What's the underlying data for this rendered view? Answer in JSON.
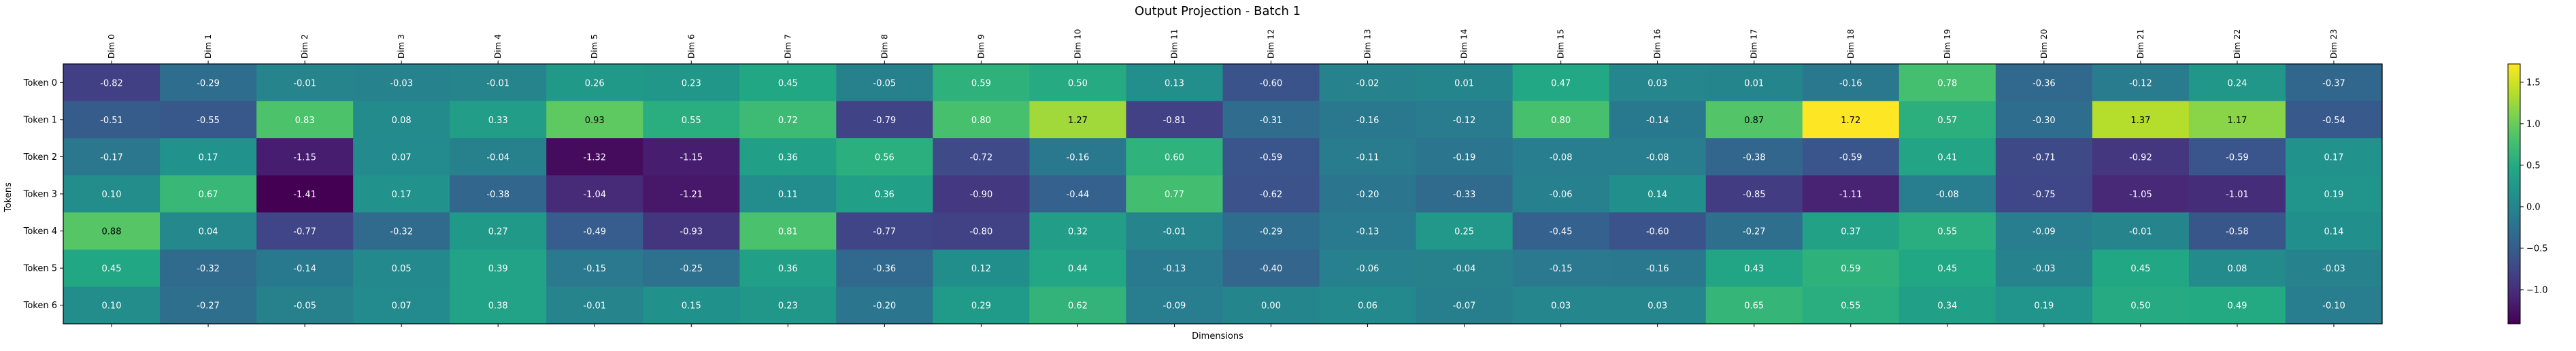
{
  "chart_data": {
    "type": "heatmap",
    "title": "Output Projection - Batch 1",
    "xlabel": "Dimensions",
    "ylabel": "Tokens",
    "x_categories": [
      "Dim 0",
      "Dim 1",
      "Dim 2",
      "Dim 3",
      "Dim 4",
      "Dim 5",
      "Dim 6",
      "Dim 7",
      "Dim 8",
      "Dim 9",
      "Dim 10",
      "Dim 11",
      "Dim 12",
      "Dim 13",
      "Dim 14",
      "Dim 15",
      "Dim 16",
      "Dim 17",
      "Dim 18",
      "Dim 19",
      "Dim 20",
      "Dim 21",
      "Dim 22",
      "Dim 23"
    ],
    "y_categories": [
      "Token 0",
      "Token 1",
      "Token 2",
      "Token 3",
      "Token 4",
      "Token 5",
      "Token 6"
    ],
    "values": [
      [
        -0.82,
        -0.29,
        -0.01,
        -0.03,
        -0.01,
        0.26,
        0.23,
        0.45,
        -0.05,
        0.59,
        0.5,
        0.13,
        -0.6,
        -0.02,
        0.01,
        0.47,
        0.03,
        0.01,
        -0.16,
        0.78,
        -0.36,
        -0.12,
        0.24,
        -0.37
      ],
      [
        -0.51,
        -0.55,
        0.83,
        0.08,
        0.33,
        0.93,
        0.55,
        0.72,
        -0.79,
        0.8,
        1.27,
        -0.81,
        -0.31,
        -0.16,
        -0.12,
        0.8,
        -0.14,
        0.87,
        1.72,
        0.57,
        -0.3,
        1.37,
        1.17,
        -0.54
      ],
      [
        -0.17,
        0.17,
        -1.15,
        0.07,
        -0.04,
        -1.32,
        -1.15,
        0.36,
        0.56,
        -0.72,
        -0.16,
        0.6,
        -0.59,
        -0.11,
        -0.19,
        -0.08,
        -0.08,
        -0.38,
        -0.59,
        0.41,
        -0.71,
        -0.92,
        -0.59,
        0.17
      ],
      [
        0.1,
        0.67,
        -1.41,
        0.17,
        -0.38,
        -1.04,
        -1.21,
        0.11,
        0.36,
        -0.9,
        -0.44,
        0.77,
        -0.62,
        -0.2,
        -0.33,
        -0.06,
        0.14,
        -0.85,
        -1.11,
        -0.08,
        -0.75,
        -1.05,
        -1.01,
        0.19
      ],
      [
        0.88,
        0.04,
        -0.77,
        -0.32,
        0.27,
        -0.49,
        -0.93,
        0.81,
        -0.77,
        -0.8,
        0.32,
        -0.01,
        -0.29,
        -0.13,
        0.25,
        -0.45,
        -0.6,
        -0.27,
        0.37,
        0.55,
        -0.09,
        -0.01,
        -0.58,
        0.14
      ],
      [
        0.45,
        -0.32,
        -0.14,
        0.05,
        0.39,
        -0.15,
        -0.25,
        0.36,
        -0.36,
        0.12,
        0.44,
        -0.13,
        -0.4,
        -0.06,
        -0.04,
        -0.15,
        -0.16,
        0.43,
        0.59,
        0.45,
        -0.03,
        0.45,
        0.08,
        -0.03
      ],
      [
        0.1,
        -0.27,
        -0.05,
        0.07,
        0.38,
        -0.01,
        0.15,
        0.23,
        -0.2,
        0.29,
        0.62,
        -0.09,
        0.0,
        0.06,
        -0.07,
        0.03,
        0.03,
        0.65,
        0.55,
        0.34,
        0.19,
        0.5,
        0.49,
        -0.1
      ]
    ],
    "vmin": -1.41,
    "vmax": 1.72,
    "colormap": "viridis",
    "colorbar_ticks": [
      {
        "value": -1.0,
        "label": "−1.0"
      },
      {
        "value": -0.5,
        "label": "−0.5"
      },
      {
        "value": 0.0,
        "label": "0.0"
      },
      {
        "value": 0.5,
        "label": "0.5"
      },
      {
        "value": 1.0,
        "label": "1.0"
      },
      {
        "value": 1.5,
        "label": "1.5"
      }
    ],
    "cell_labels": true,
    "cell_label_format": "2 decimals",
    "grid": false,
    "colorbar_location": "right"
  }
}
